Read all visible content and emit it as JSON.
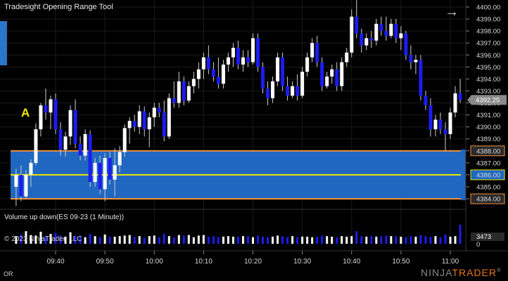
{
  "window": {
    "title": "Tradesight Opening Range Tool",
    "marker_label": "A",
    "copyright": "© 2023 NinjaTrader, LLC",
    "bottom_left": "OR",
    "brand": {
      "prefix": "NINJA",
      "suffix": "TRADER",
      "mark": "®"
    },
    "colors": {
      "background": "#000000",
      "up_candle": "#ffffff",
      "down_candle": "#1c1cf0",
      "range_fill": "#1f67c0",
      "range_border": "#f2913a",
      "range_mid": "#f2e600",
      "price_tag": "#8a8a8a"
    }
  },
  "price_axis": {
    "labels": [
      "4400.00",
      "4399.00",
      "4398.00",
      "4397.00",
      "4396.00",
      "4395.00",
      "4394.00",
      "4393.00",
      "4392.00",
      "4391.00",
      "4390.00",
      "4389.00",
      "4388.00",
      "4387.00",
      "4386.00",
      "4385.00",
      "4384.00"
    ],
    "current_price": "4392.25"
  },
  "time_axis": {
    "labels": [
      "09:40",
      "09:50",
      "10:00",
      "10:10",
      "10:20",
      "10:30",
      "10:40",
      "10:50",
      "11:00"
    ]
  },
  "volume_panel": {
    "title": "Volume up down(ES 09-23 (1 Minute))",
    "max_label": "3473",
    "zero_label": "0"
  },
  "chart_data": {
    "type": "candlestick",
    "symbol": "ES 09-23",
    "interval": "1 Minute",
    "y_range": [
      4383.4,
      4400.6
    ],
    "x_range": [
      "09:32",
      "11:03"
    ],
    "opening_range": {
      "high": 4388.0,
      "mid": 4386.0,
      "low": 4384.0
    },
    "candles": [
      {
        "t": "09:32",
        "o": 4385.0,
        "h": 4386.5,
        "l": 4383.4,
        "c": 4386.0
      },
      {
        "t": "09:33",
        "o": 4386.0,
        "h": 4386.8,
        "l": 4383.8,
        "c": 4384.2
      },
      {
        "t": "09:34",
        "o": 4384.2,
        "h": 4386.4,
        "l": 4384.0,
        "c": 4386.0
      },
      {
        "t": "09:35",
        "o": 4386.0,
        "h": 4387.3,
        "l": 4385.0,
        "c": 4387.0
      },
      {
        "t": "09:36",
        "o": 4387.0,
        "h": 4390.3,
        "l": 4386.8,
        "c": 4389.8
      },
      {
        "t": "09:37",
        "o": 4389.8,
        "h": 4392.0,
        "l": 4389.2,
        "c": 4391.8
      },
      {
        "t": "09:38",
        "o": 4391.8,
        "h": 4393.2,
        "l": 4390.6,
        "c": 4391.2
      },
      {
        "t": "09:39",
        "o": 4391.2,
        "h": 4392.6,
        "l": 4389.8,
        "c": 4392.3
      },
      {
        "t": "09:40",
        "o": 4392.3,
        "h": 4392.8,
        "l": 4389.4,
        "c": 4389.8
      },
      {
        "t": "09:41",
        "o": 4389.8,
        "h": 4390.4,
        "l": 4387.6,
        "c": 4388.1
      },
      {
        "t": "09:42",
        "o": 4388.1,
        "h": 4389.6,
        "l": 4387.5,
        "c": 4389.2
      },
      {
        "t": "09:43",
        "o": 4389.2,
        "h": 4391.8,
        "l": 4388.5,
        "c": 4391.4
      },
      {
        "t": "09:44",
        "o": 4391.4,
        "h": 4392.3,
        "l": 4388.2,
        "c": 4388.6
      },
      {
        "t": "09:45",
        "o": 4388.6,
        "h": 4389.2,
        "l": 4387.2,
        "c": 4387.6
      },
      {
        "t": "09:46",
        "o": 4387.6,
        "h": 4389.8,
        "l": 4387.2,
        "c": 4389.4
      },
      {
        "t": "09:47",
        "o": 4389.4,
        "h": 4389.7,
        "l": 4385.0,
        "c": 4385.4
      },
      {
        "t": "09:48",
        "o": 4385.4,
        "h": 4387.4,
        "l": 4385.0,
        "c": 4387.0
      },
      {
        "t": "09:49",
        "o": 4387.0,
        "h": 4387.6,
        "l": 4384.4,
        "c": 4384.8
      },
      {
        "t": "09:50",
        "o": 4384.8,
        "h": 4387.8,
        "l": 4383.8,
        "c": 4387.4
      },
      {
        "t": "09:51",
        "o": 4387.4,
        "h": 4387.9,
        "l": 4385.2,
        "c": 4385.6
      },
      {
        "t": "09:52",
        "o": 4385.6,
        "h": 4388.2,
        "l": 4384.2,
        "c": 4386.8
      },
      {
        "t": "09:53",
        "o": 4386.8,
        "h": 4388.4,
        "l": 4386.2,
        "c": 4387.9
      },
      {
        "t": "09:54",
        "o": 4387.9,
        "h": 4390.2,
        "l": 4387.5,
        "c": 4389.9
      },
      {
        "t": "09:55",
        "o": 4389.9,
        "h": 4390.8,
        "l": 4388.6,
        "c": 4390.5
      },
      {
        "t": "09:56",
        "o": 4390.5,
        "h": 4391.0,
        "l": 4389.6,
        "c": 4390.0
      },
      {
        "t": "09:57",
        "o": 4390.0,
        "h": 4391.8,
        "l": 4389.4,
        "c": 4391.3
      },
      {
        "t": "09:58",
        "o": 4391.3,
        "h": 4391.7,
        "l": 4389.2,
        "c": 4389.8
      },
      {
        "t": "09:59",
        "o": 4389.8,
        "h": 4391.2,
        "l": 4388.3,
        "c": 4390.8
      },
      {
        "t": "10:00",
        "o": 4390.8,
        "h": 4392.0,
        "l": 4390.0,
        "c": 4391.6
      },
      {
        "t": "10:01",
        "o": 4391.6,
        "h": 4392.0,
        "l": 4390.8,
        "c": 4391.2
      },
      {
        "t": "10:02",
        "o": 4391.2,
        "h": 4392.2,
        "l": 4388.8,
        "c": 4389.2
      },
      {
        "t": "10:03",
        "o": 4389.2,
        "h": 4392.8,
        "l": 4389.0,
        "c": 4392.4
      },
      {
        "t": "10:04",
        "o": 4392.4,
        "h": 4393.8,
        "l": 4391.6,
        "c": 4392.0
      },
      {
        "t": "10:05",
        "o": 4392.0,
        "h": 4394.6,
        "l": 4391.6,
        "c": 4393.8
      },
      {
        "t": "10:06",
        "o": 4393.8,
        "h": 4394.2,
        "l": 4391.8,
        "c": 4392.2
      },
      {
        "t": "10:07",
        "o": 4392.2,
        "h": 4393.8,
        "l": 4392.0,
        "c": 4393.4
      },
      {
        "t": "10:08",
        "o": 4393.4,
        "h": 4394.6,
        "l": 4392.8,
        "c": 4394.0
      },
      {
        "t": "10:09",
        "o": 4394.0,
        "h": 4395.4,
        "l": 4393.2,
        "c": 4394.8
      },
      {
        "t": "10:10",
        "o": 4394.8,
        "h": 4396.2,
        "l": 4394.0,
        "c": 4395.8
      },
      {
        "t": "10:11",
        "o": 4395.8,
        "h": 4396.8,
        "l": 4394.4,
        "c": 4394.8
      },
      {
        "t": "10:12",
        "o": 4394.8,
        "h": 4395.4,
        "l": 4393.8,
        "c": 4394.2
      },
      {
        "t": "10:13",
        "o": 4394.2,
        "h": 4395.8,
        "l": 4393.2,
        "c": 4393.6
      },
      {
        "t": "10:14",
        "o": 4393.6,
        "h": 4395.6,
        "l": 4393.2,
        "c": 4395.2
      },
      {
        "t": "10:15",
        "o": 4395.2,
        "h": 4396.2,
        "l": 4394.6,
        "c": 4395.8
      },
      {
        "t": "10:16",
        "o": 4395.8,
        "h": 4397.0,
        "l": 4395.0,
        "c": 4396.6
      },
      {
        "t": "10:17",
        "o": 4396.6,
        "h": 4397.2,
        "l": 4394.8,
        "c": 4395.2
      },
      {
        "t": "10:18",
        "o": 4395.2,
        "h": 4396.4,
        "l": 4394.6,
        "c": 4395.8
      },
      {
        "t": "10:19",
        "o": 4395.8,
        "h": 4396.4,
        "l": 4395.0,
        "c": 4395.4
      },
      {
        "t": "10:20",
        "o": 4395.4,
        "h": 4397.8,
        "l": 4395.2,
        "c": 4397.4
      },
      {
        "t": "10:21",
        "o": 4397.4,
        "h": 4397.8,
        "l": 4394.6,
        "c": 4395.0
      },
      {
        "t": "10:22",
        "o": 4395.0,
        "h": 4395.4,
        "l": 4392.8,
        "c": 4393.2
      },
      {
        "t": "10:23",
        "o": 4393.2,
        "h": 4393.8,
        "l": 4391.8,
        "c": 4392.4
      },
      {
        "t": "10:24",
        "o": 4392.4,
        "h": 4394.2,
        "l": 4392.0,
        "c": 4393.8
      },
      {
        "t": "10:25",
        "o": 4393.8,
        "h": 4396.2,
        "l": 4393.4,
        "c": 4395.8
      },
      {
        "t": "10:26",
        "o": 4395.8,
        "h": 4396.2,
        "l": 4393.0,
        "c": 4393.4
      },
      {
        "t": "10:27",
        "o": 4393.4,
        "h": 4394.2,
        "l": 4392.2,
        "c": 4392.6
      },
      {
        "t": "10:28",
        "o": 4392.6,
        "h": 4393.8,
        "l": 4392.4,
        "c": 4393.4
      },
      {
        "t": "10:29",
        "o": 4393.4,
        "h": 4394.4,
        "l": 4392.2,
        "c": 4392.6
      },
      {
        "t": "10:30",
        "o": 4392.6,
        "h": 4395.0,
        "l": 4392.4,
        "c": 4394.6
      },
      {
        "t": "10:31",
        "o": 4394.6,
        "h": 4396.2,
        "l": 4394.2,
        "c": 4395.8
      },
      {
        "t": "10:32",
        "o": 4395.8,
        "h": 4397.4,
        "l": 4395.4,
        "c": 4397.0
      },
      {
        "t": "10:33",
        "o": 4397.0,
        "h": 4397.6,
        "l": 4395.0,
        "c": 4395.4
      },
      {
        "t": "10:34",
        "o": 4395.4,
        "h": 4395.8,
        "l": 4393.0,
        "c": 4393.4
      },
      {
        "t": "10:35",
        "o": 4393.4,
        "h": 4394.6,
        "l": 4393.2,
        "c": 4394.2
      },
      {
        "t": "10:36",
        "o": 4394.2,
        "h": 4395.2,
        "l": 4393.6,
        "c": 4394.8
      },
      {
        "t": "10:37",
        "o": 4394.8,
        "h": 4395.4,
        "l": 4393.0,
        "c": 4393.4
      },
      {
        "t": "10:38",
        "o": 4393.4,
        "h": 4395.8,
        "l": 4393.0,
        "c": 4395.4
      },
      {
        "t": "10:39",
        "o": 4395.4,
        "h": 4396.6,
        "l": 4395.0,
        "c": 4396.2
      },
      {
        "t": "10:40",
        "o": 4396.2,
        "h": 4399.8,
        "l": 4395.8,
        "c": 4399.2
      },
      {
        "t": "10:41",
        "o": 4399.2,
        "h": 4400.6,
        "l": 4397.4,
        "c": 4397.8
      },
      {
        "t": "10:42",
        "o": 4397.8,
        "h": 4398.2,
        "l": 4396.2,
        "c": 4396.8
      },
      {
        "t": "10:43",
        "o": 4396.8,
        "h": 4397.8,
        "l": 4396.4,
        "c": 4397.4
      },
      {
        "t": "10:44",
        "o": 4397.4,
        "h": 4398.0,
        "l": 4396.6,
        "c": 4397.2
      },
      {
        "t": "10:45",
        "o": 4397.2,
        "h": 4399.0,
        "l": 4396.8,
        "c": 4398.6
      },
      {
        "t": "10:46",
        "o": 4398.6,
        "h": 4399.2,
        "l": 4397.6,
        "c": 4398.0
      },
      {
        "t": "10:47",
        "o": 4398.0,
        "h": 4399.2,
        "l": 4397.2,
        "c": 4397.6
      },
      {
        "t": "10:48",
        "o": 4397.6,
        "h": 4399.0,
        "l": 4397.4,
        "c": 4398.6
      },
      {
        "t": "10:49",
        "o": 4398.6,
        "h": 4399.0,
        "l": 4397.0,
        "c": 4397.4
      },
      {
        "t": "10:50",
        "o": 4397.4,
        "h": 4398.4,
        "l": 4396.4,
        "c": 4397.8
      },
      {
        "t": "10:51",
        "o": 4397.8,
        "h": 4398.0,
        "l": 4395.6,
        "c": 4396.0
      },
      {
        "t": "10:52",
        "o": 4396.0,
        "h": 4396.8,
        "l": 4394.8,
        "c": 4395.4
      },
      {
        "t": "10:53",
        "o": 4395.4,
        "h": 4396.0,
        "l": 4394.4,
        "c": 4395.6
      },
      {
        "t": "10:54",
        "o": 4395.6,
        "h": 4396.0,
        "l": 4392.2,
        "c": 4392.6
      },
      {
        "t": "10:55",
        "o": 4392.6,
        "h": 4393.0,
        "l": 4391.4,
        "c": 4391.8
      },
      {
        "t": "10:56",
        "o": 4391.8,
        "h": 4392.4,
        "l": 4389.2,
        "c": 4389.8
      },
      {
        "t": "10:57",
        "o": 4389.8,
        "h": 4391.0,
        "l": 4389.2,
        "c": 4390.6
      },
      {
        "t": "10:58",
        "o": 4390.6,
        "h": 4391.2,
        "l": 4389.4,
        "c": 4389.8
      },
      {
        "t": "10:59",
        "o": 4389.8,
        "h": 4390.4,
        "l": 4388.0,
        "c": 4389.4
      },
      {
        "t": "11:00",
        "o": 4389.4,
        "h": 4391.6,
        "l": 4389.0,
        "c": 4391.2
      },
      {
        "t": "11:01",
        "o": 4391.2,
        "h": 4393.4,
        "l": 4390.8,
        "c": 4392.8
      },
      {
        "t": "11:02",
        "o": 4392.8,
        "h": 4394.0,
        "l": 4392.0,
        "c": 4392.25
      }
    ],
    "volume": [
      1400,
      1700,
      2300,
      1600,
      1500,
      2200,
      1400,
      1800,
      2000,
      1500,
      1300,
      2100,
      1500,
      1500,
      1200,
      1800,
      1400,
      1200,
      1700,
      1300,
      1300,
      1400,
      1500,
      1600,
      1300,
      1400,
      1100,
      1400,
      1500,
      1200,
      1800,
      1400,
      1200,
      1600,
      1500,
      1600,
      1200,
      1500,
      1600,
      1300,
      1400,
      1200,
      1300,
      1400,
      1300,
      1300,
      1400,
      1400,
      1200,
      1500,
      1300,
      1200,
      1300,
      1500,
      1400,
      1200,
      1400,
      1200,
      1300,
      1300,
      1200,
      1300,
      1500,
      1400,
      1300,
      1200,
      1400,
      1300,
      1400,
      2300,
      1400,
      1300,
      1400,
      1300,
      1400,
      1500,
      1400,
      1400,
      1300,
      1200,
      1400,
      1300,
      1600,
      1400,
      1300,
      1400,
      1200,
      1700,
      1300,
      1400,
      3473
    ]
  }
}
